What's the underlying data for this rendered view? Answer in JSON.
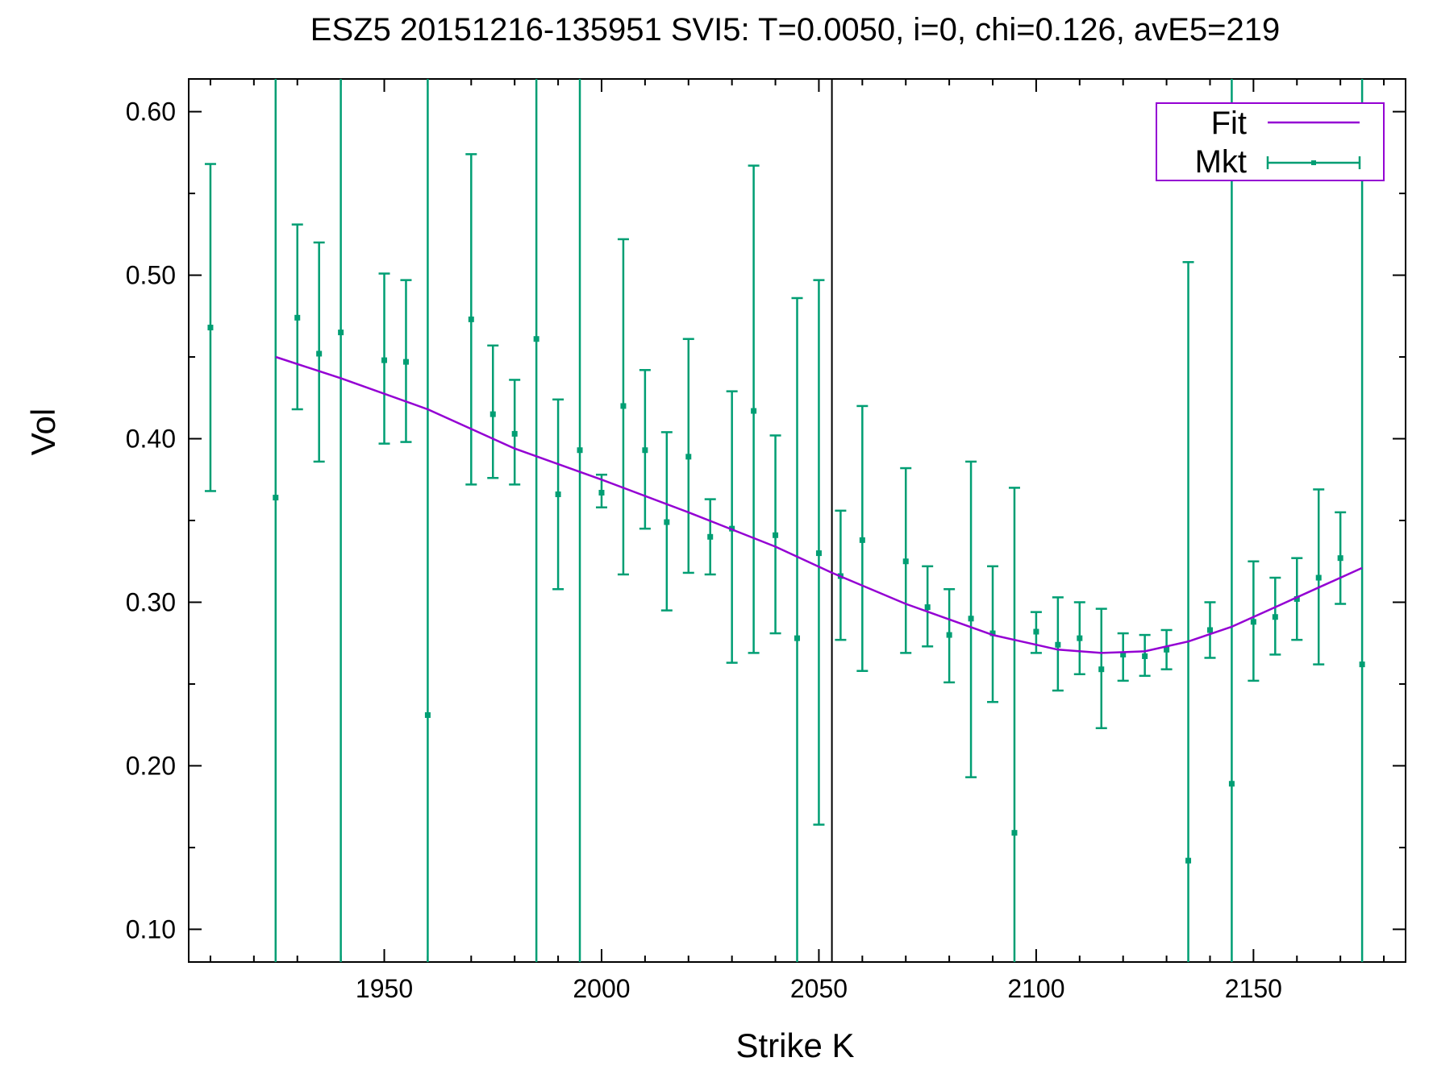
{
  "chart_data": {
    "type": "scatter",
    "title": "ESZ5 20151216-135951  SVI5:  T=0.0050, i=0, chi=0.126, avE5=219",
    "xlabel": "Strike K",
    "ylabel": "Vol",
    "xlim": [
      1905,
      2185
    ],
    "ylim": [
      0.08,
      0.62
    ],
    "xticks": [
      1950,
      2000,
      2050,
      2100,
      2150
    ],
    "xtick_labels": [
      "1950",
      "2000",
      "2050",
      "2100",
      "2150"
    ],
    "yticks": [
      0.1,
      0.2,
      0.3,
      0.4,
      0.5,
      0.6
    ],
    "ytick_labels": [
      "0.10",
      "0.20",
      "0.30",
      "0.40",
      "0.50",
      "0.60"
    ],
    "vline_x": 2053,
    "legend_position": "top-right",
    "colors": {
      "fit": "#9400d3",
      "mkt": "#009e73",
      "axis": "#000000"
    },
    "series": [
      {
        "name": "Fit",
        "style": "line",
        "x": [
          1925,
          1940,
          1960,
          1980,
          2000,
          2020,
          2040,
          2053,
          2070,
          2090,
          2105,
          2115,
          2125,
          2135,
          2145,
          2155,
          2165,
          2175
        ],
        "y": [
          0.45,
          0.437,
          0.418,
          0.394,
          0.375,
          0.355,
          0.334,
          0.318,
          0.299,
          0.28,
          0.271,
          0.269,
          0.27,
          0.276,
          0.285,
          0.297,
          0.309,
          0.321
        ]
      },
      {
        "name": "Mkt",
        "style": "points-errorbars",
        "x": [
          1910,
          1925,
          1930,
          1935,
          1940,
          1950,
          1955,
          1960,
          1970,
          1975,
          1980,
          1985,
          1990,
          1995,
          2000,
          2005,
          2010,
          2015,
          2020,
          2025,
          2030,
          2035,
          2040,
          2045,
          2050,
          2055,
          2060,
          2070,
          2075,
          2080,
          2085,
          2090,
          2095,
          2100,
          2105,
          2110,
          2115,
          2120,
          2125,
          2130,
          2135,
          2140,
          2145,
          2150,
          2155,
          2160,
          2165,
          2170,
          2175
        ],
        "y": [
          0.468,
          0.364,
          0.474,
          0.452,
          0.465,
          0.448,
          0.447,
          0.231,
          0.473,
          0.415,
          0.403,
          0.461,
          0.366,
          0.393,
          0.367,
          0.42,
          0.393,
          0.349,
          0.389,
          0.34,
          0.345,
          0.417,
          0.341,
          0.278,
          0.33,
          0.316,
          0.338,
          0.325,
          0.297,
          0.28,
          0.29,
          0.281,
          0.159,
          0.282,
          0.274,
          0.278,
          0.259,
          0.268,
          0.267,
          0.271,
          0.142,
          0.283,
          0.189,
          0.288,
          0.291,
          0.302,
          0.315,
          0.327,
          0.262
        ],
        "ylow": [
          0.368,
          0.08,
          0.418,
          0.386,
          0.08,
          0.397,
          0.398,
          0.08,
          0.372,
          0.376,
          0.372,
          0.08,
          0.308,
          0.08,
          0.358,
          0.317,
          0.345,
          0.295,
          0.318,
          0.317,
          0.263,
          0.269,
          0.281,
          0.08,
          0.164,
          0.277,
          0.258,
          0.269,
          0.273,
          0.251,
          0.193,
          0.239,
          0.08,
          0.269,
          0.246,
          0.256,
          0.223,
          0.252,
          0.255,
          0.259,
          0.08,
          0.266,
          0.08,
          0.252,
          0.268,
          0.277,
          0.262,
          0.299,
          0.08
        ],
        "yhigh": [
          0.568,
          0.62,
          0.531,
          0.52,
          0.62,
          0.501,
          0.497,
          0.62,
          0.574,
          0.457,
          0.436,
          0.62,
          0.424,
          0.62,
          0.378,
          0.522,
          0.442,
          0.404,
          0.461,
          0.363,
          0.429,
          0.567,
          0.402,
          0.486,
          0.497,
          0.356,
          0.42,
          0.382,
          0.322,
          0.308,
          0.386,
          0.322,
          0.37,
          0.294,
          0.303,
          0.3,
          0.296,
          0.281,
          0.28,
          0.283,
          0.508,
          0.3,
          0.62,
          0.325,
          0.315,
          0.327,
          0.369,
          0.355,
          0.62
        ]
      }
    ]
  }
}
